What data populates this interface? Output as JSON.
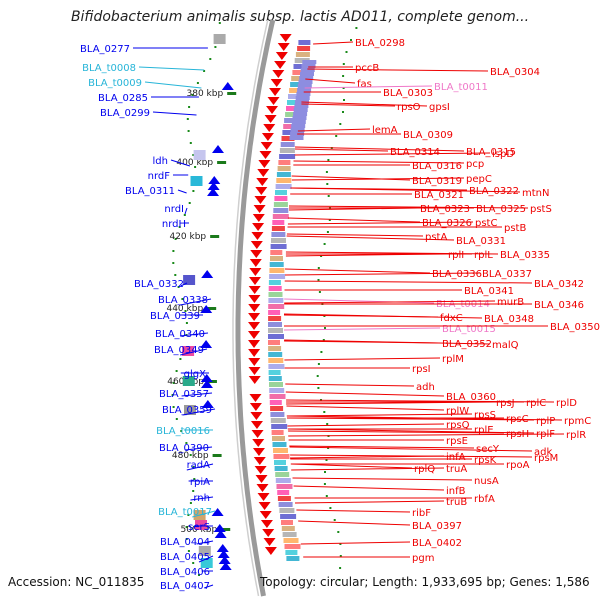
{
  "header": {
    "title": "Bifidobacterium animalis subsp. lactis AD011, complete genom..."
  },
  "footer": {
    "accession": "Accession: NC_011835",
    "topology": "Topology: circular; Length: 1,933,695 bp; Genes: 1,586"
  },
  "ruler": {
    "ticks": [
      "380 kbp",
      "400 kbp",
      "420 kbp",
      "440 kbp",
      "460 kbp",
      "480 kbp",
      "500 kbp"
    ]
  },
  "colors": {
    "forward_gene": "#0000ee",
    "forward_trna": "#27b5d8",
    "reverse_gene": "#ee0000",
    "reverse_trna": "#ef78c8",
    "backbone": "#9a9a9a",
    "gc_dots": "#1a8a1a"
  },
  "left_labels": [
    {
      "text": "BLA_0277",
      "kind": "gene"
    },
    {
      "text": "BLA_t0008",
      "kind": "trna"
    },
    {
      "text": "BLA_t0009",
      "kind": "trna"
    },
    {
      "text": "BLA_0285",
      "kind": "gene"
    },
    {
      "text": "BLA_0299",
      "kind": "gene"
    },
    {
      "text": "ldh",
      "kind": "gene"
    },
    {
      "text": "nrdF",
      "kind": "gene"
    },
    {
      "text": "BLA_0311",
      "kind": "gene"
    },
    {
      "text": "nrdI",
      "kind": "gene"
    },
    {
      "text": "nrdH",
      "kind": "gene"
    },
    {
      "text": "BLA_0332",
      "kind": "gene"
    },
    {
      "text": "BLA_0338",
      "kind": "gene"
    },
    {
      "text": "BLA_0339",
      "kind": "gene"
    },
    {
      "text": "BLA_0340",
      "kind": "gene"
    },
    {
      "text": "BLA_0349",
      "kind": "gene"
    },
    {
      "text": "glgX",
      "kind": "gene"
    },
    {
      "text": "BLA_0357",
      "kind": "gene"
    },
    {
      "text": "BLA_0359",
      "kind": "gene"
    },
    {
      "text": "BLA_t0016",
      "kind": "trna"
    },
    {
      "text": "BLA_0390",
      "kind": "gene"
    },
    {
      "text": "radA",
      "kind": "gene"
    },
    {
      "text": "rpiA",
      "kind": "gene"
    },
    {
      "text": "rnh",
      "kind": "gene"
    },
    {
      "text": "BLA_t0017",
      "kind": "trna"
    },
    {
      "text": "serS",
      "kind": "gene"
    },
    {
      "text": "BLA_0404",
      "kind": "gene"
    },
    {
      "text": "BLA_0405",
      "kind": "gene"
    },
    {
      "text": "BLA_0406",
      "kind": "gene"
    },
    {
      "text": "BLA_0407",
      "kind": "gene"
    }
  ],
  "right_labels": [
    {
      "text": "BLA_0298",
      "kind": "gene"
    },
    {
      "text": "pccB",
      "kind": "gene"
    },
    {
      "text": "BLA_0304",
      "kind": "gene"
    },
    {
      "text": "fas",
      "kind": "gene"
    },
    {
      "text": "BLA_t0011",
      "kind": "trna"
    },
    {
      "text": "BLA_0303",
      "kind": "gene"
    },
    {
      "text": "rpsO",
      "kind": "gene"
    },
    {
      "text": "gpsI",
      "kind": "gene"
    },
    {
      "text": "lemA",
      "kind": "gene"
    },
    {
      "text": "BLA_0309",
      "kind": "gene"
    },
    {
      "text": "BLA_0314",
      "kind": "gene"
    },
    {
      "text": "BLA_0315",
      "kind": "gene"
    },
    {
      "text": "ispD",
      "kind": "gene"
    },
    {
      "text": "BLA_0316",
      "kind": "gene"
    },
    {
      "text": "pcp",
      "kind": "gene"
    },
    {
      "text": "BLA_0319",
      "kind": "gene"
    },
    {
      "text": "pepC",
      "kind": "gene"
    },
    {
      "text": "BLA_0321",
      "kind": "gene"
    },
    {
      "text": "BLA_0322",
      "kind": "gene"
    },
    {
      "text": "mtnN",
      "kind": "gene"
    },
    {
      "text": "BLA_0323",
      "kind": "gene"
    },
    {
      "text": "BLA_0325",
      "kind": "gene"
    },
    {
      "text": "pstS",
      "kind": "gene"
    },
    {
      "text": "BLA_0326",
      "kind": "gene"
    },
    {
      "text": "pstC",
      "kind": "gene"
    },
    {
      "text": "pstB",
      "kind": "gene"
    },
    {
      "text": "pstA",
      "kind": "gene"
    },
    {
      "text": "BLA_0331",
      "kind": "gene"
    },
    {
      "text": "rplI",
      "kind": "gene"
    },
    {
      "text": "rplL",
      "kind": "gene"
    },
    {
      "text": "BLA_0335",
      "kind": "gene"
    },
    {
      "text": "BLA_0336",
      "kind": "gene"
    },
    {
      "text": "BLA_0337",
      "kind": "gene"
    },
    {
      "text": "BLA_0341",
      "kind": "gene"
    },
    {
      "text": "BLA_0342",
      "kind": "gene"
    },
    {
      "text": "BLA_t0014",
      "kind": "trna"
    },
    {
      "text": "murB",
      "kind": "gene"
    },
    {
      "text": "BLA_0346",
      "kind": "gene"
    },
    {
      "text": "fdxC",
      "kind": "gene"
    },
    {
      "text": "BLA_0348",
      "kind": "gene"
    },
    {
      "text": "BLA_t0015",
      "kind": "trna"
    },
    {
      "text": "BLA_0350",
      "kind": "gene"
    },
    {
      "text": "BLA_0352",
      "kind": "gene"
    },
    {
      "text": "malQ",
      "kind": "gene"
    },
    {
      "text": "rplM",
      "kind": "gene"
    },
    {
      "text": "rpsI",
      "kind": "gene"
    },
    {
      "text": "adh",
      "kind": "gene"
    },
    {
      "text": "BLA_0360",
      "kind": "gene"
    },
    {
      "text": "rpsJ",
      "kind": "gene"
    },
    {
      "text": "rplC",
      "kind": "gene"
    },
    {
      "text": "rplD",
      "kind": "gene"
    },
    {
      "text": "rplW",
      "kind": "gene"
    },
    {
      "text": "rpsS",
      "kind": "gene"
    },
    {
      "text": "rpsC",
      "kind": "gene"
    },
    {
      "text": "rplP",
      "kind": "gene"
    },
    {
      "text": "rpmC",
      "kind": "gene"
    },
    {
      "text": "rpsQ",
      "kind": "gene"
    },
    {
      "text": "rplE",
      "kind": "gene"
    },
    {
      "text": "rpsH",
      "kind": "gene"
    },
    {
      "text": "rplF",
      "kind": "gene"
    },
    {
      "text": "rplR",
      "kind": "gene"
    },
    {
      "text": "rpsE",
      "kind": "gene"
    },
    {
      "text": "secY",
      "kind": "gene"
    },
    {
      "text": "adk",
      "kind": "gene"
    },
    {
      "text": "infA",
      "kind": "gene"
    },
    {
      "text": "rpsK",
      "kind": "gene"
    },
    {
      "text": "rpsM",
      "kind": "gene"
    },
    {
      "text": "rplQ",
      "kind": "gene"
    },
    {
      "text": "truA",
      "kind": "gene"
    },
    {
      "text": "rpoA",
      "kind": "gene"
    },
    {
      "text": "nusA",
      "kind": "gene"
    },
    {
      "text": "infB",
      "kind": "gene"
    },
    {
      "text": "truB",
      "kind": "gene"
    },
    {
      "text": "rbfA",
      "kind": "gene"
    },
    {
      "text": "ribF",
      "kind": "gene"
    },
    {
      "text": "BLA_0397",
      "kind": "gene"
    },
    {
      "text": "BLA_0402",
      "kind": "gene"
    },
    {
      "text": "pgm",
      "kind": "gene"
    }
  ]
}
